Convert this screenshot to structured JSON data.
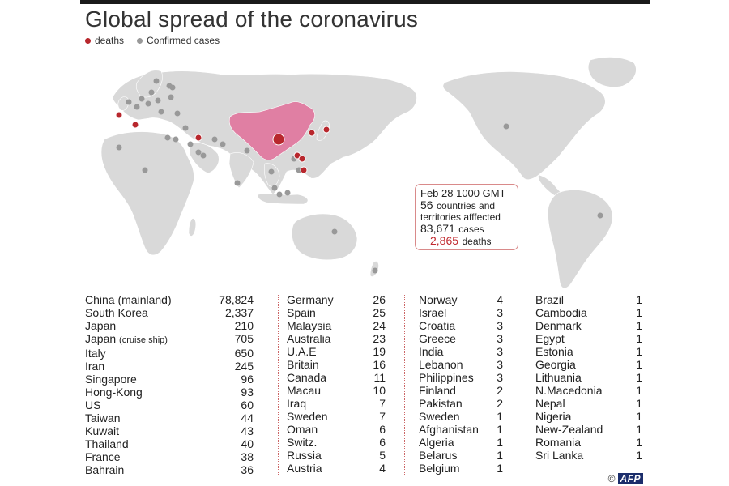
{
  "title": "Global spread of the coronavirus",
  "legend": [
    {
      "label": "deaths",
      "color": "#b8272d"
    },
    {
      "label": "Confirmed cases",
      "color": "#999999"
    }
  ],
  "colors": {
    "land": "#d9d9d9",
    "china": "#e07fa3",
    "death": "#b8272d",
    "case": "#999999",
    "box_border": "#d98a8a"
  },
  "info_box": {
    "date": "Feb 28 1000 GMT",
    "countries_count": "56",
    "countries_text1": "countries and",
    "countries_text2": "territories afffected",
    "cases_count": "83,671",
    "cases_label": "cases",
    "deaths_count": "2,865",
    "deaths_label": "deaths"
  },
  "columns": [
    [
      {
        "name": "China (mainland)",
        "value": "78,824"
      },
      {
        "name": "South Korea",
        "value": "2,337"
      },
      {
        "name": "Japan",
        "value": "210"
      },
      {
        "name": "Japan",
        "note": "(cruise ship)",
        "value": "705"
      },
      {
        "name": "Italy",
        "value": "650"
      },
      {
        "name": "Iran",
        "value": "245"
      },
      {
        "name": "Singapore",
        "value": "96"
      },
      {
        "name": "Hong-Kong",
        "value": "93"
      },
      {
        "name": "US",
        "value": "60"
      },
      {
        "name": "Taiwan",
        "value": "44"
      },
      {
        "name": "Kuwait",
        "value": "43"
      },
      {
        "name": "Thailand",
        "value": "40"
      },
      {
        "name": "France",
        "value": "38"
      },
      {
        "name": "Bahrain",
        "value": "36"
      }
    ],
    [
      {
        "name": "Germany",
        "value": "26"
      },
      {
        "name": "Spain",
        "value": "25"
      },
      {
        "name": "Malaysia",
        "value": "24"
      },
      {
        "name": "Australia",
        "value": "23"
      },
      {
        "name": "U.A.E",
        "value": "19"
      },
      {
        "name": "Britain",
        "value": "16"
      },
      {
        "name": "Canada",
        "value": "11"
      },
      {
        "name": "Macau",
        "value": "10"
      },
      {
        "name": "Iraq",
        "value": "7"
      },
      {
        "name": "Sweden",
        "value": "7"
      },
      {
        "name": "Oman",
        "value": "6"
      },
      {
        "name": "Switz.",
        "value": "6"
      },
      {
        "name": "Russia",
        "value": "5"
      },
      {
        "name": "Austria",
        "value": "4"
      }
    ],
    [
      {
        "name": "Norway",
        "value": "4"
      },
      {
        "name": "Israel",
        "value": "3"
      },
      {
        "name": "Croatia",
        "value": "3"
      },
      {
        "name": "Greece",
        "value": "3"
      },
      {
        "name": "India",
        "value": "3"
      },
      {
        "name": "Lebanon",
        "value": "3"
      },
      {
        "name": "Philippines",
        "value": "3"
      },
      {
        "name": "Finland",
        "value": "2"
      },
      {
        "name": "Pakistan",
        "value": "2"
      },
      {
        "name": "Sweden",
        "value": "1"
      },
      {
        "name": "Afghanistan",
        "value": "1"
      },
      {
        "name": "Algeria",
        "value": "1"
      },
      {
        "name": "Belarus",
        "value": "1"
      },
      {
        "name": "Belgium",
        "value": "1"
      }
    ],
    [
      {
        "name": "Brazil",
        "value": "1"
      },
      {
        "name": "Cambodia",
        "value": "1"
      },
      {
        "name": "Denmark",
        "value": "1"
      },
      {
        "name": "Egypt",
        "value": "1"
      },
      {
        "name": "Estonia",
        "value": "1"
      },
      {
        "name": "Georgia",
        "value": "1"
      },
      {
        "name": "Lithuania",
        "value": "1"
      },
      {
        "name": "N.Macedonia",
        "value": "1"
      },
      {
        "name": "Nepal",
        "value": "1"
      },
      {
        "name": "Nigeria",
        "value": "1"
      },
      {
        "name": "New-Zealand",
        "value": "1"
      },
      {
        "name": "Romania",
        "value": "1"
      },
      {
        "name": "Sri Lanka",
        "value": "1"
      }
    ]
  ],
  "credit": {
    "symbol": "©",
    "agency": "AFP"
  }
}
